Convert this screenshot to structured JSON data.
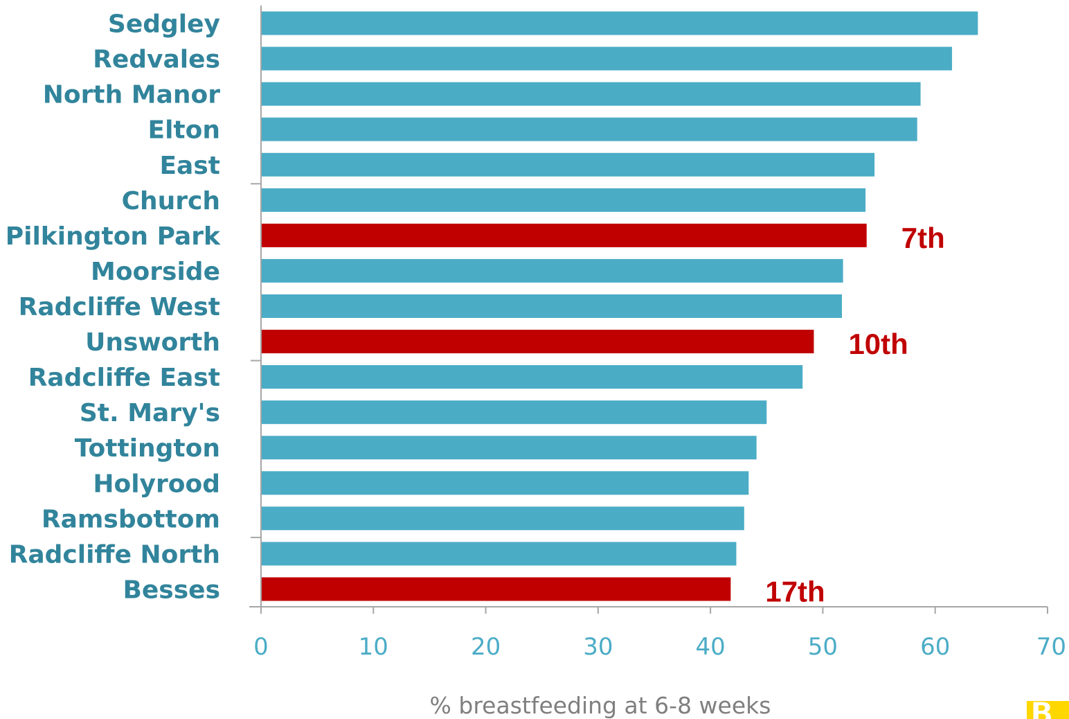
{
  "chart_data": {
    "type": "bar",
    "orientation": "horizontal",
    "categories": [
      "Sedgley",
      "Redvales",
      "North Manor",
      "Elton",
      "East",
      "Church",
      "Pilkington Park",
      "Moorside",
      "Radcliffe West",
      "Unsworth",
      "Radcliffe East",
      "St. Mary's",
      "Tottington",
      "Holyrood",
      "Ramsbottom",
      "Radcliffe North",
      "Besses"
    ],
    "values": [
      63.8,
      61.5,
      58.7,
      58.4,
      54.6,
      53.8,
      53.9,
      51.8,
      51.7,
      49.2,
      48.2,
      45.0,
      44.1,
      43.4,
      43.0,
      42.3,
      41.8
    ],
    "highlighted": [
      false,
      false,
      false,
      false,
      false,
      false,
      true,
      false,
      false,
      true,
      false,
      false,
      false,
      false,
      false,
      false,
      true
    ],
    "annotations": [
      {
        "category": "Pilkington Park",
        "text": "7th"
      },
      {
        "category": "Unsworth",
        "text": "10th"
      },
      {
        "category": "Besses",
        "text": "17th"
      }
    ],
    "xlabel": "% breastfeeding at 6-8 weeks",
    "ylabel": "",
    "title": "",
    "xlim": [
      0,
      70
    ],
    "xticks": [
      "0",
      "10",
      "20",
      "30",
      "40",
      "50",
      "60",
      "70"
    ],
    "grid": false,
    "colors": {
      "bar": "#4BACC6",
      "highlight": "#C00000",
      "label_text": "#31849B",
      "tick_text": "#4BACC6",
      "axis_title_text": "#7F7F7F",
      "annotation_text": "#C00000",
      "axis_line": "#A6A6A6"
    }
  },
  "logo": {
    "text": "B",
    "color": "#FFD700"
  }
}
